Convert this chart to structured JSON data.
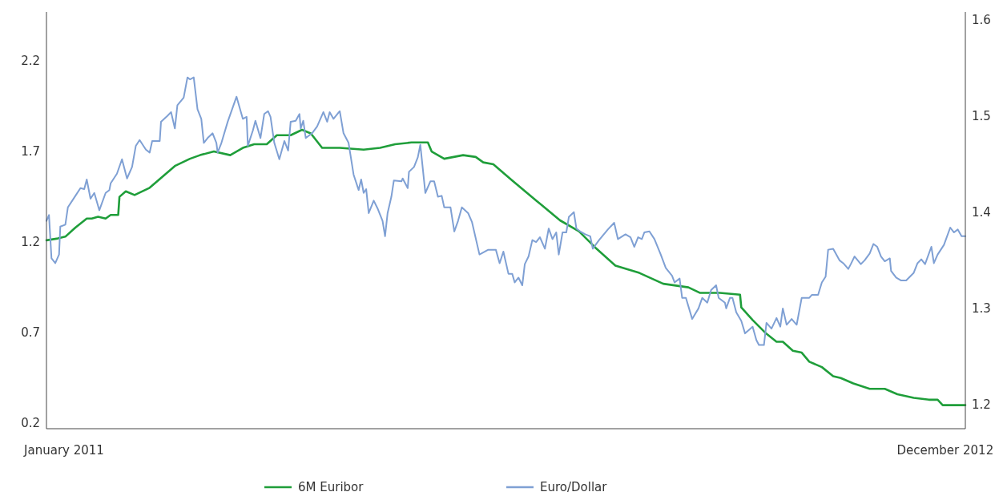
{
  "chart_data": {
    "type": "line",
    "xlim": [
      "2011-01-01",
      "2012-12-31"
    ],
    "xticks": [
      {
        "value": "2011-01-15",
        "label": "January 2011"
      },
      {
        "value": "2012-12-15",
        "label": "December 2012"
      }
    ],
    "ylim": [
      0.17,
      2.47
    ],
    "yticks": [
      0.2,
      0.7,
      1.2,
      1.7,
      2.2
    ],
    "y2lim": [
      1.175,
      1.608
    ],
    "y2ticks": [
      1.2,
      1.3,
      1.4,
      1.5,
      1.6
    ],
    "legend": "bottom",
    "line_style": "solid",
    "series": [
      {
        "name": "6M Euribor",
        "color": "#1f9e3a",
        "x": [
          "2011-01-01",
          "2011-01-10",
          "2011-01-16",
          "2011-01-24",
          "2011-02-02",
          "2011-02-06",
          "2011-02-11",
          "2011-02-17",
          "2011-02-21",
          "2011-02-27",
          "2011-02-28",
          "2011-03-05",
          "2011-03-12",
          "2011-03-24",
          "2011-04-03",
          "2011-04-13",
          "2011-04-25",
          "2011-05-03",
          "2011-05-14",
          "2011-05-27",
          "2011-06-06",
          "2011-06-15",
          "2011-06-25",
          "2011-07-03",
          "2011-07-14",
          "2011-07-23",
          "2011-07-30",
          "2011-08-08",
          "2011-08-22",
          "2011-09-10",
          "2011-09-23",
          "2011-10-05",
          "2011-10-18",
          "2011-10-31",
          "2011-11-03",
          "2011-11-13",
          "2011-11-28",
          "2011-12-08",
          "2011-12-14",
          "2011-12-22",
          "2012-01-06",
          "2012-01-25",
          "2012-02-13",
          "2012-02-28",
          "2012-03-12",
          "2012-03-28",
          "2012-04-16",
          "2012-05-05",
          "2012-05-25",
          "2012-06-03",
          "2012-06-19",
          "2012-07-05",
          "2012-07-06",
          "2012-07-15",
          "2012-07-25",
          "2012-08-03",
          "2012-08-08",
          "2012-08-16",
          "2012-08-23",
          "2012-08-29",
          "2012-09-08",
          "2012-09-17",
          "2012-09-23",
          "2012-10-03",
          "2012-10-16",
          "2012-10-28",
          "2012-11-07",
          "2012-11-20",
          "2012-12-02",
          "2012-12-09",
          "2012-12-13",
          "2012-12-31"
        ],
        "values": [
          1.21,
          1.22,
          1.23,
          1.28,
          1.33,
          1.33,
          1.34,
          1.33,
          1.35,
          1.35,
          1.45,
          1.48,
          1.46,
          1.5,
          1.56,
          1.62,
          1.66,
          1.68,
          1.7,
          1.68,
          1.72,
          1.74,
          1.74,
          1.79,
          1.79,
          1.82,
          1.8,
          1.72,
          1.72,
          1.71,
          1.72,
          1.74,
          1.75,
          1.75,
          1.7,
          1.66,
          1.68,
          1.67,
          1.64,
          1.63,
          1.54,
          1.43,
          1.32,
          1.26,
          1.17,
          1.07,
          1.03,
          0.97,
          0.95,
          0.92,
          0.92,
          0.91,
          0.84,
          0.77,
          0.7,
          0.65,
          0.65,
          0.6,
          0.59,
          0.54,
          0.51,
          0.46,
          0.45,
          0.42,
          0.39,
          0.39,
          0.36,
          0.34,
          0.33,
          0.33,
          0.3,
          0.3
        ]
      },
      {
        "name": "Euro/Dollar",
        "color": "#7fa0d4",
        "axis": "y2",
        "x": [
          "2011-01-01",
          "2011-01-03",
          "2011-01-05",
          "2011-01-08",
          "2011-01-11",
          "2011-01-12",
          "2011-01-16",
          "2011-01-18",
          "2011-01-24",
          "2011-01-28",
          "2011-01-31",
          "2011-02-02",
          "2011-02-05",
          "2011-02-08",
          "2011-02-12",
          "2011-02-17",
          "2011-02-20",
          "2011-02-21",
          "2011-02-26",
          "2011-03-02",
          "2011-03-06",
          "2011-03-10",
          "2011-03-13",
          "2011-03-16",
          "2011-03-21",
          "2011-03-24",
          "2011-03-26",
          "2011-04-01",
          "2011-04-02",
          "2011-04-07",
          "2011-04-10",
          "2011-04-13",
          "2011-04-15",
          "2011-04-20",
          "2011-04-23",
          "2011-04-25",
          "2011-04-28",
          "2011-05-01",
          "2011-05-04",
          "2011-05-06",
          "2011-05-09",
          "2011-05-13",
          "2011-05-16",
          "2011-05-17",
          "2011-05-20",
          "2011-05-25",
          "2011-06-01",
          "2011-06-06",
          "2011-06-09",
          "2011-06-10",
          "2011-06-14",
          "2011-06-16",
          "2011-06-20",
          "2011-06-23",
          "2011-06-26",
          "2011-06-28",
          "2011-07-01",
          "2011-07-05",
          "2011-07-09",
          "2011-07-12",
          "2011-07-14",
          "2011-07-18",
          "2011-07-21",
          "2011-07-22",
          "2011-07-24",
          "2011-07-26",
          "2011-07-31",
          "2011-08-04",
          "2011-08-09",
          "2011-08-12",
          "2011-08-14",
          "2011-08-17",
          "2011-08-22",
          "2011-08-25",
          "2011-08-29",
          "2011-09-02",
          "2011-09-06",
          "2011-09-08",
          "2011-09-10",
          "2011-09-12",
          "2011-09-14",
          "2011-09-18",
          "2011-09-21",
          "2011-09-25",
          "2011-09-27",
          "2011-09-29",
          "2011-10-02",
          "2011-10-04",
          "2011-10-10",
          "2011-10-11",
          "2011-10-15",
          "2011-10-16",
          "2011-10-20",
          "2011-10-23",
          "2011-10-25",
          "2011-10-29",
          "2011-11-02",
          "2011-11-05",
          "2011-11-08",
          "2011-11-11",
          "2011-11-13",
          "2011-11-18",
          "2011-11-21",
          "2011-11-24",
          "2011-11-27",
          "2011-12-02",
          "2011-12-05",
          "2011-12-11",
          "2011-12-18",
          "2011-12-24",
          "2011-12-27",
          "2011-12-30",
          "2012-01-03",
          "2012-01-06",
          "2012-01-08",
          "2012-01-11",
          "2012-01-14",
          "2012-01-16",
          "2012-01-19",
          "2012-01-22",
          "2012-01-25",
          "2012-01-28",
          "2012-02-01",
          "2012-02-04",
          "2012-02-07",
          "2012-02-10",
          "2012-02-12",
          "2012-02-15",
          "2012-02-18",
          "2012-02-20",
          "2012-02-24",
          "2012-02-26",
          "2012-02-29",
          "2012-03-04",
          "2012-03-08",
          "2012-03-10",
          "2012-03-15",
          "2012-03-22",
          "2012-03-27",
          "2012-03-30",
          "2012-04-05",
          "2012-04-09",
          "2012-04-12",
          "2012-04-15",
          "2012-04-18",
          "2012-04-20",
          "2012-04-24",
          "2012-04-28",
          "2012-05-03",
          "2012-05-07",
          "2012-05-12",
          "2012-05-14",
          "2012-05-18",
          "2012-05-20",
          "2012-05-23",
          "2012-05-28",
          "2012-06-02",
          "2012-06-05",
          "2012-06-09",
          "2012-06-12",
          "2012-06-16",
          "2012-06-18",
          "2012-06-23",
          "2012-06-24",
          "2012-06-27",
          "2012-06-29",
          "2012-07-02",
          "2012-07-06",
          "2012-07-09",
          "2012-07-15",
          "2012-07-18",
          "2012-07-20",
          "2012-07-24",
          "2012-07-26",
          "2012-07-30",
          "2012-08-03",
          "2012-08-06",
          "2012-08-08",
          "2012-08-11",
          "2012-08-15",
          "2012-08-19",
          "2012-08-23",
          "2012-08-29",
          "2012-08-31",
          "2012-09-05",
          "2012-09-08",
          "2012-09-11",
          "2012-09-13",
          "2012-09-17",
          "2012-09-22",
          "2012-09-25",
          "2012-09-29",
          "2012-10-01",
          "2012-10-04",
          "2012-10-09",
          "2012-10-12",
          "2012-10-16",
          "2012-10-19",
          "2012-10-22",
          "2012-10-25",
          "2012-10-28",
          "2012-11-01",
          "2012-11-02",
          "2012-11-06",
          "2012-11-10",
          "2012-11-14",
          "2012-11-20",
          "2012-11-23",
          "2012-11-26",
          "2012-11-29",
          "2012-12-04",
          "2012-12-06",
          "2012-12-09",
          "2012-12-14",
          "2012-12-19",
          "2012-12-22",
          "2012-12-25",
          "2012-12-28",
          "2012-12-31"
        ],
        "values": [
          1.391,
          1.397,
          1.352,
          1.347,
          1.356,
          1.385,
          1.387,
          1.405,
          1.417,
          1.425,
          1.424,
          1.434,
          1.414,
          1.42,
          1.402,
          1.42,
          1.423,
          1.43,
          1.44,
          1.455,
          1.435,
          1.447,
          1.469,
          1.475,
          1.465,
          1.462,
          1.474,
          1.474,
          1.494,
          1.5,
          1.504,
          1.487,
          1.511,
          1.519,
          1.54,
          1.538,
          1.54,
          1.507,
          1.497,
          1.472,
          1.477,
          1.482,
          1.472,
          1.462,
          1.472,
          1.494,
          1.52,
          1.497,
          1.499,
          1.469,
          1.485,
          1.495,
          1.477,
          1.502,
          1.505,
          1.499,
          1.472,
          1.455,
          1.474,
          1.464,
          1.494,
          1.495,
          1.502,
          1.487,
          1.495,
          1.477,
          1.482,
          1.489,
          1.504,
          1.494,
          1.504,
          1.497,
          1.505,
          1.482,
          1.472,
          1.439,
          1.423,
          1.434,
          1.42,
          1.424,
          1.399,
          1.412,
          1.404,
          1.391,
          1.375,
          1.399,
          1.416,
          1.433,
          1.432,
          1.435,
          1.425,
          1.442,
          1.447,
          1.457,
          1.47,
          1.42,
          1.432,
          1.432,
          1.416,
          1.417,
          1.405,
          1.405,
          1.38,
          1.391,
          1.405,
          1.399,
          1.39,
          1.356,
          1.361,
          1.361,
          1.347,
          1.359,
          1.336,
          1.336,
          1.327,
          1.332,
          1.324,
          1.346,
          1.354,
          1.371,
          1.369,
          1.374,
          1.362,
          1.383,
          1.372,
          1.379,
          1.356,
          1.379,
          1.379,
          1.395,
          1.4,
          1.383,
          1.38,
          1.377,
          1.375,
          1.362,
          1.371,
          1.382,
          1.389,
          1.372,
          1.377,
          1.374,
          1.364,
          1.374,
          1.372,
          1.379,
          1.38,
          1.372,
          1.356,
          1.342,
          1.334,
          1.327,
          1.331,
          1.311,
          1.311,
          1.289,
          1.3,
          1.311,
          1.306,
          1.319,
          1.324,
          1.311,
          1.306,
          1.3,
          1.311,
          1.311,
          1.296,
          1.287,
          1.274,
          1.281,
          1.267,
          1.262,
          1.262,
          1.285,
          1.279,
          1.29,
          1.281,
          1.3,
          1.283,
          1.289,
          1.283,
          1.311,
          1.311,
          1.314,
          1.314,
          1.327,
          1.333,
          1.361,
          1.362,
          1.35,
          1.347,
          1.341,
          1.346,
          1.354,
          1.346,
          1.35,
          1.357,
          1.367,
          1.364,
          1.354,
          1.349,
          1.352,
          1.339,
          1.332,
          1.329,
          1.329,
          1.337,
          1.347,
          1.351,
          1.346,
          1.364,
          1.347,
          1.356,
          1.366,
          1.384,
          1.379,
          1.382,
          1.375,
          1.375
        ]
      }
    ]
  }
}
